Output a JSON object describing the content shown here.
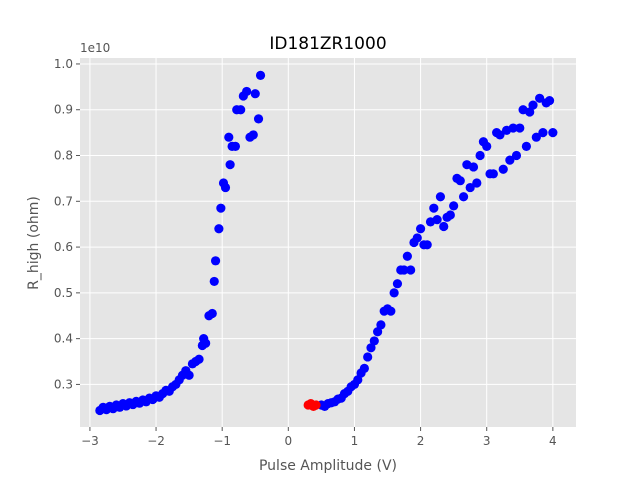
{
  "chart_data": {
    "type": "scatter",
    "title": "ID181ZR1000",
    "xlabel": "Pulse Amplitude (V)",
    "ylabel": "R_high (ohm)",
    "offset_label": "1e10",
    "xlim": [
      -3.15,
      4.35
    ],
    "ylim": [
      0.207,
      1.013
    ],
    "xticks": [
      -3,
      -2,
      -1,
      0,
      1,
      2,
      3,
      4
    ],
    "yticks": [
      0.3,
      0.4,
      0.5,
      0.6,
      0.7,
      0.8,
      0.9,
      1.0
    ],
    "xtick_labels": [
      "−3",
      "−2",
      "−1",
      "0",
      "1",
      "2",
      "3",
      "4"
    ],
    "ytick_labels": [
      "0.3",
      "0.4",
      "0.5",
      "0.6",
      "0.7",
      "0.8",
      "0.9",
      "1.0"
    ],
    "grid": true,
    "series": [
      {
        "color": "#0000ff",
        "points": [
          [
            -2.85,
            0.243
          ],
          [
            -2.8,
            0.25
          ],
          [
            -2.75,
            0.245
          ],
          [
            -2.7,
            0.252
          ],
          [
            -2.65,
            0.247
          ],
          [
            -2.6,
            0.255
          ],
          [
            -2.55,
            0.25
          ],
          [
            -2.5,
            0.258
          ],
          [
            -2.45,
            0.253
          ],
          [
            -2.4,
            0.26
          ],
          [
            -2.35,
            0.256
          ],
          [
            -2.3,
            0.263
          ],
          [
            -2.25,
            0.259
          ],
          [
            -2.2,
            0.266
          ],
          [
            -2.15,
            0.262
          ],
          [
            -2.1,
            0.27
          ],
          [
            -2.05,
            0.267
          ],
          [
            -2.0,
            0.275
          ],
          [
            -1.95,
            0.272
          ],
          [
            -1.9,
            0.28
          ],
          [
            -1.85,
            0.287
          ],
          [
            -1.8,
            0.285
          ],
          [
            -1.75,
            0.295
          ],
          [
            -1.7,
            0.3
          ],
          [
            -1.65,
            0.31
          ],
          [
            -1.6,
            0.32
          ],
          [
            -1.55,
            0.33
          ],
          [
            -1.5,
            0.32
          ],
          [
            -1.45,
            0.345
          ],
          [
            -1.4,
            0.35
          ],
          [
            -1.35,
            0.355
          ],
          [
            -1.3,
            0.385
          ],
          [
            -1.28,
            0.4
          ],
          [
            -1.25,
            0.39
          ],
          [
            -1.2,
            0.45
          ],
          [
            -1.15,
            0.455
          ],
          [
            -1.12,
            0.525
          ],
          [
            -1.1,
            0.57
          ],
          [
            -1.05,
            0.64
          ],
          [
            -1.02,
            0.685
          ],
          [
            -0.98,
            0.74
          ],
          [
            -0.95,
            0.73
          ],
          [
            -0.9,
            0.84
          ],
          [
            -0.88,
            0.78
          ],
          [
            -0.85,
            0.82
          ],
          [
            -0.8,
            0.82
          ],
          [
            -0.78,
            0.9
          ],
          [
            -0.72,
            0.9
          ],
          [
            -0.68,
            0.93
          ],
          [
            -0.63,
            0.94
          ],
          [
            -0.58,
            0.84
          ],
          [
            -0.53,
            0.845
          ],
          [
            -0.5,
            0.935
          ],
          [
            -0.45,
            0.88
          ],
          [
            -0.42,
            0.975
          ],
          [
            0.5,
            0.255
          ],
          [
            0.55,
            0.252
          ],
          [
            0.6,
            0.258
          ],
          [
            0.65,
            0.26
          ],
          [
            0.7,
            0.262
          ],
          [
            0.75,
            0.268
          ],
          [
            0.8,
            0.27
          ],
          [
            0.85,
            0.28
          ],
          [
            0.9,
            0.285
          ],
          [
            0.95,
            0.295
          ],
          [
            1.0,
            0.3
          ],
          [
            1.05,
            0.31
          ],
          [
            1.1,
            0.325
          ],
          [
            1.15,
            0.335
          ],
          [
            1.2,
            0.36
          ],
          [
            1.25,
            0.38
          ],
          [
            1.3,
            0.395
          ],
          [
            1.35,
            0.415
          ],
          [
            1.4,
            0.43
          ],
          [
            1.45,
            0.46
          ],
          [
            1.5,
            0.465
          ],
          [
            1.55,
            0.46
          ],
          [
            1.6,
            0.5
          ],
          [
            1.65,
            0.52
          ],
          [
            1.7,
            0.55
          ],
          [
            1.75,
            0.55
          ],
          [
            1.8,
            0.58
          ],
          [
            1.85,
            0.55
          ],
          [
            1.9,
            0.61
          ],
          [
            1.95,
            0.62
          ],
          [
            2.0,
            0.64
          ],
          [
            2.05,
            0.605
          ],
          [
            2.1,
            0.605
          ],
          [
            2.15,
            0.655
          ],
          [
            2.2,
            0.685
          ],
          [
            2.25,
            0.66
          ],
          [
            2.3,
            0.71
          ],
          [
            2.35,
            0.645
          ],
          [
            2.4,
            0.665
          ],
          [
            2.45,
            0.67
          ],
          [
            2.5,
            0.69
          ],
          [
            2.55,
            0.75
          ],
          [
            2.6,
            0.745
          ],
          [
            2.65,
            0.71
          ],
          [
            2.7,
            0.78
          ],
          [
            2.75,
            0.73
          ],
          [
            2.8,
            0.775
          ],
          [
            2.85,
            0.74
          ],
          [
            2.9,
            0.8
          ],
          [
            2.95,
            0.83
          ],
          [
            3.0,
            0.82
          ],
          [
            3.05,
            0.76
          ],
          [
            3.1,
            0.76
          ],
          [
            3.15,
            0.85
          ],
          [
            3.2,
            0.845
          ],
          [
            3.25,
            0.77
          ],
          [
            3.3,
            0.855
          ],
          [
            3.35,
            0.79
          ],
          [
            3.4,
            0.86
          ],
          [
            3.45,
            0.8
          ],
          [
            3.5,
            0.86
          ],
          [
            3.55,
            0.9
          ],
          [
            3.6,
            0.82
          ],
          [
            3.65,
            0.895
          ],
          [
            3.7,
            0.91
          ],
          [
            3.75,
            0.84
          ],
          [
            3.8,
            0.925
          ],
          [
            3.85,
            0.85
          ],
          [
            3.9,
            0.915
          ],
          [
            3.95,
            0.92
          ],
          [
            4.0,
            0.85
          ]
        ]
      },
      {
        "color": "#ff0000",
        "points": [
          [
            0.3,
            0.255
          ],
          [
            0.34,
            0.258
          ],
          [
            0.38,
            0.252
          ],
          [
            0.42,
            0.255
          ]
        ]
      }
    ]
  }
}
